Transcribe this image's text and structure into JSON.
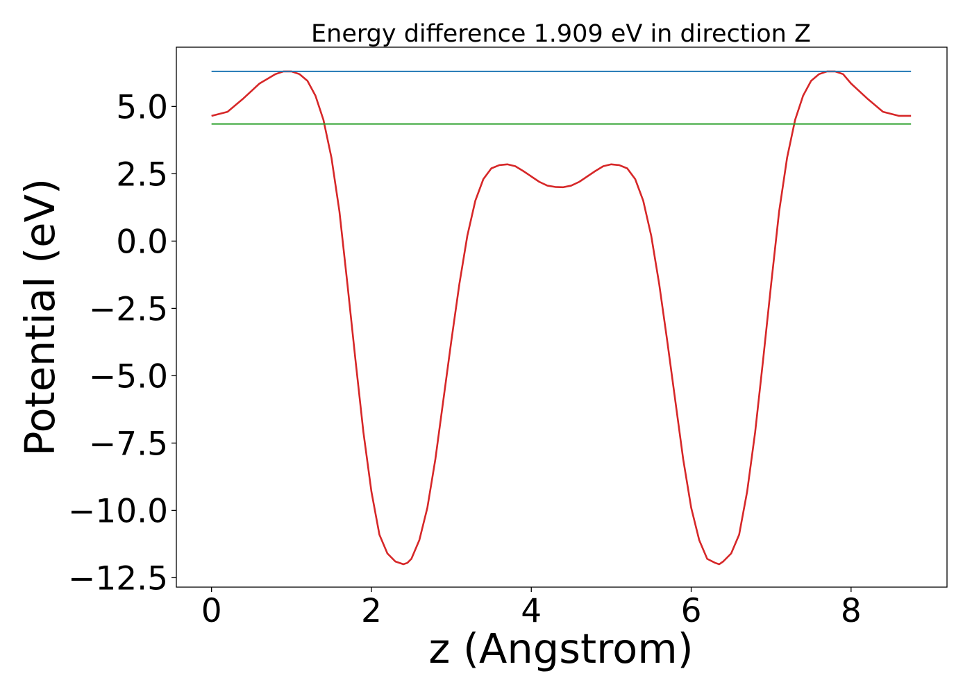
{
  "chart_data": {
    "type": "line",
    "title": "Energy difference 1.909 eV in direction Z",
    "xlabel": "z (Angstrom)",
    "ylabel": "Potential (eV)",
    "xlim": [
      -0.44,
      9.2
    ],
    "ylim": [
      -12.85,
      7.2
    ],
    "x_ticks": [
      0,
      2,
      4,
      6,
      8
    ],
    "x_tick_labels": [
      "0",
      "2",
      "4",
      "6",
      "8"
    ],
    "y_ticks": [
      5.0,
      2.5,
      0.0,
      -2.5,
      -5.0,
      -7.5,
      -10.0,
      -12.5
    ],
    "y_tick_labels": [
      "5.0",
      "2.5",
      "0.0",
      "−2.5",
      "−5.0",
      "−7.5",
      "−10.0",
      "−12.5"
    ],
    "grid": false,
    "legend": "none",
    "series": [
      {
        "color": "#d62728",
        "x": [
          0.0,
          0.2,
          0.4,
          0.6,
          0.8,
          0.9,
          1.0,
          1.1,
          1.2,
          1.3,
          1.4,
          1.5,
          1.6,
          1.7,
          1.8,
          1.9,
          2.0,
          2.1,
          2.2,
          2.3,
          2.4,
          2.45,
          2.5,
          2.6,
          2.7,
          2.8,
          2.9,
          3.0,
          3.1,
          3.2,
          3.3,
          3.4,
          3.5,
          3.6,
          3.7,
          3.8,
          3.9,
          4.0,
          4.1,
          4.2,
          4.3,
          4.4,
          4.5,
          4.6,
          4.7,
          4.8,
          4.9,
          5.0,
          5.1,
          5.2,
          5.3,
          5.4,
          5.5,
          5.6,
          5.7,
          5.8,
          5.9,
          6.0,
          6.1,
          6.2,
          6.3,
          6.35,
          6.4,
          6.5,
          6.6,
          6.7,
          6.8,
          6.9,
          7.0,
          7.1,
          7.2,
          7.3,
          7.4,
          7.5,
          7.6,
          7.7,
          7.8,
          7.9,
          8.0,
          8.2,
          8.4,
          8.6,
          8.75
        ],
        "y": [
          4.65,
          4.8,
          5.3,
          5.85,
          6.2,
          6.3,
          6.3,
          6.2,
          5.95,
          5.4,
          4.5,
          3.1,
          1.1,
          -1.6,
          -4.4,
          -7.1,
          -9.3,
          -10.9,
          -11.6,
          -11.9,
          -12.0,
          -11.95,
          -11.8,
          -11.1,
          -9.9,
          -8.1,
          -5.9,
          -3.7,
          -1.6,
          0.2,
          1.5,
          2.3,
          2.7,
          2.82,
          2.85,
          2.78,
          2.6,
          2.4,
          2.2,
          2.06,
          2.01,
          2.0,
          2.06,
          2.2,
          2.4,
          2.6,
          2.78,
          2.85,
          2.82,
          2.7,
          2.3,
          1.5,
          0.2,
          -1.6,
          -3.7,
          -5.9,
          -8.1,
          -9.9,
          -11.1,
          -11.8,
          -11.95,
          -12.0,
          -11.9,
          -11.6,
          -10.9,
          -9.3,
          -7.1,
          -4.4,
          -1.6,
          1.1,
          3.1,
          4.5,
          5.4,
          5.95,
          6.2,
          6.3,
          6.3,
          6.2,
          5.85,
          5.3,
          4.8,
          4.65,
          4.65
        ]
      },
      {
        "color": "#1f77b4",
        "x": [
          0.0,
          8.75
        ],
        "y": [
          6.3,
          6.3
        ]
      },
      {
        "color": "#2ca02c",
        "x": [
          0.0,
          8.75
        ],
        "y": [
          4.35,
          4.35
        ]
      }
    ]
  }
}
